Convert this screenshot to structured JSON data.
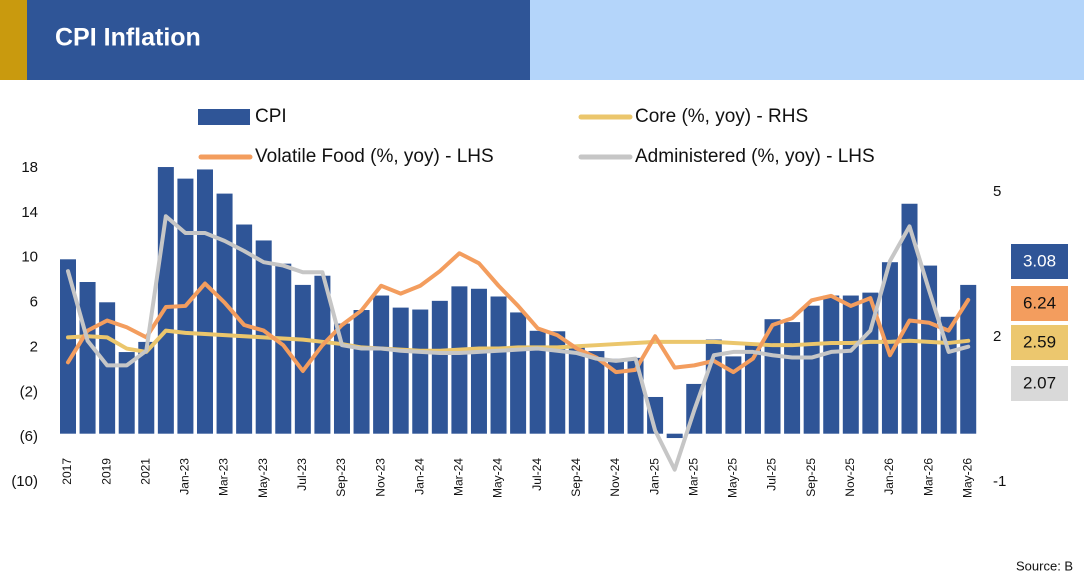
{
  "chart_data": {
    "type": "bar",
    "title": "CPI Inflation",
    "source": "Source: B",
    "categories": [
      "2017",
      null,
      "2019",
      null,
      "2021",
      null,
      "Jan-23",
      null,
      "Mar-23",
      null,
      "May-23",
      null,
      "Jul-23",
      null,
      "Sep-23",
      null,
      "Nov-23",
      null,
      "Jan-24",
      null,
      "Mar-24",
      null,
      "May-24",
      null,
      "Jul-24",
      null,
      "Sep-24",
      null,
      "Nov-24",
      null,
      "Jan-25",
      null,
      "Mar-25",
      null,
      "May-25",
      null,
      "Jul-25",
      null,
      "Sep-25",
      null,
      "Nov-25",
      null,
      "Jan-26",
      null,
      "Mar-26",
      null,
      "May-26"
    ],
    "series": [
      {
        "name": "CPI",
        "type": "bar",
        "axis": "y2",
        "color": "#2f5597",
        "values": [
          3.61,
          3.14,
          2.72,
          1.69,
          1.9,
          5.52,
          5.28,
          5.47,
          4.97,
          4.33,
          4.0,
          3.52,
          3.08,
          3.27,
          2.28,
          2.56,
          2.86,
          2.61,
          2.57,
          2.75,
          3.05,
          3.0,
          2.84,
          2.51,
          2.13,
          2.12,
          1.84,
          1.71,
          1.55,
          1.57,
          0.76,
          -0.09,
          1.03,
          1.95,
          1.6,
          1.87,
          2.37,
          2.31,
          2.65,
          2.86,
          2.86,
          2.92,
          3.55,
          4.76,
          3.48,
          2.42,
          3.08
        ]
      },
      {
        "name": "Core (%, yoy) - RHS",
        "type": "line",
        "color": "#ebc66c",
        "values": [
          2.9,
          3.0,
          2.9,
          1.9,
          1.6,
          3.5,
          3.3,
          3.2,
          3.1,
          3.0,
          2.9,
          2.8,
          2.7,
          2.5,
          2.3,
          2.0,
          1.9,
          1.8,
          1.7,
          1.7,
          1.8,
          1.9,
          1.9,
          2.0,
          2.0,
          2.0,
          2.1,
          2.2,
          2.3,
          2.4,
          2.5,
          2.5,
          2.5,
          2.5,
          2.4,
          2.3,
          2.2,
          2.2,
          2.3,
          2.4,
          2.4,
          2.5,
          2.5,
          2.6,
          2.5,
          2.4,
          2.59
        ]
      },
      {
        "name": "Volatile Food (%, yoy) - LHS",
        "type": "line",
        "color": "#f39d5e",
        "values": [
          0.67,
          3.5,
          4.4,
          3.8,
          2.9,
          5.6,
          5.7,
          7.7,
          6.0,
          4.0,
          3.5,
          2.2,
          -0.1,
          2.2,
          4.0,
          5.3,
          7.5,
          6.8,
          7.5,
          8.8,
          10.4,
          9.5,
          7.5,
          5.7,
          3.7,
          3.1,
          1.9,
          1.1,
          -0.2,
          0.0,
          3.0,
          0.2,
          0.4,
          0.8,
          -0.2,
          1.0,
          4.0,
          4.6,
          6.2,
          6.6,
          5.7,
          6.4,
          1.3,
          4.4,
          4.2,
          3.5,
          6.24
        ]
      },
      {
        "name": "Administered (%, yoy) - LHS",
        "type": "line",
        "color": "#c6c6c6",
        "values": [
          8.8,
          2.6,
          0.4,
          0.4,
          1.7,
          13.7,
          12.2,
          12.2,
          11.5,
          10.6,
          9.6,
          9.3,
          8.7,
          8.7,
          2.2,
          1.9,
          1.9,
          1.7,
          1.6,
          1.5,
          1.5,
          1.6,
          1.7,
          1.8,
          1.9,
          1.7,
          1.5,
          1.0,
          0.8,
          1.0,
          -5.4,
          -8.9,
          -3.6,
          1.3,
          1.6,
          1.6,
          1.3,
          1.1,
          1.1,
          1.6,
          1.7,
          3.5,
          9.7,
          12.8,
          7.1,
          1.6,
          2.07
        ]
      }
    ],
    "ylim": [
      -10,
      18
    ],
    "yticks": [
      {
        "value": -10,
        "label": "(10)"
      },
      {
        "value": -6,
        "label": "(6)"
      },
      {
        "value": -2,
        "label": "(2)"
      },
      2,
      6,
      10,
      14,
      18
    ],
    "y2lim": [
      -1,
      5.5
    ],
    "y2ticks": [
      -1,
      2,
      5
    ],
    "grid": false
  }
}
